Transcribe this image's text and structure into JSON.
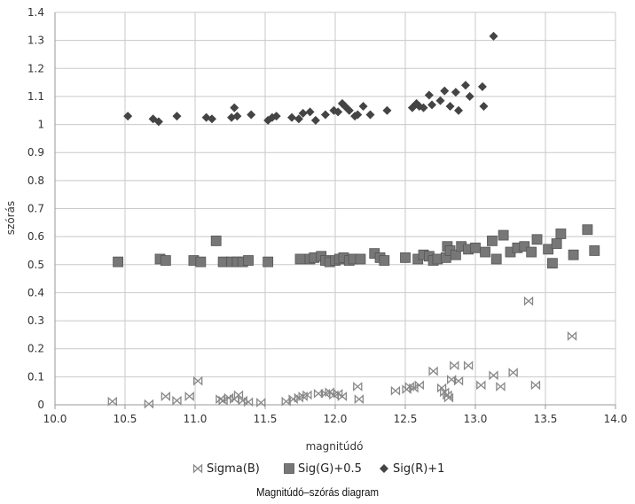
{
  "caption": "Magnitúdó–szórás diagram",
  "chart_data": {
    "type": "scatter",
    "title": "",
    "xlabel": "magnitúdó",
    "ylabel": "szórás",
    "xlim": [
      10.0,
      14.0
    ],
    "ylim": [
      0,
      1.4
    ],
    "x_ticks": [
      10.0,
      10.5,
      11.0,
      11.5,
      12.0,
      12.5,
      13.0,
      13.5,
      14.0
    ],
    "x_tick_labels": [
      "10.0",
      "10.5",
      "11.0",
      "11.5",
      "12.0",
      "12.5",
      "13.0",
      "13.5",
      "14.0"
    ],
    "y_ticks": [
      0,
      0.1,
      0.2,
      0.3,
      0.4,
      0.5,
      0.6,
      0.7,
      0.8,
      0.9,
      1,
      1.1,
      1.2,
      1.3,
      1.4
    ],
    "y_tick_labels": [
      "0",
      "0.1",
      "0.2",
      "0.3",
      "0.4",
      "0.5",
      "0.6",
      "0.7",
      "0.8",
      "0.9",
      "1",
      "1.1",
      "1.2",
      "1.3",
      "1.4"
    ],
    "grid": true,
    "legend_position": "bottom",
    "series": [
      {
        "name": "Sigma(B)",
        "marker": "bowtie",
        "color": "#888888",
        "x": [
          10.41,
          10.67,
          10.79,
          10.87,
          10.96,
          11.02,
          11.18,
          11.2,
          11.24,
          11.28,
          11.31,
          11.34,
          11.38,
          11.47,
          11.65,
          11.7,
          11.74,
          11.77,
          11.8,
          11.88,
          11.93,
          11.96,
          11.99,
          12.02,
          12.05,
          12.16,
          12.17,
          12.43,
          12.51,
          12.53,
          12.56,
          12.6,
          12.7,
          12.76,
          12.78,
          12.8,
          12.81,
          12.83,
          12.85,
          12.88,
          12.95,
          13.04,
          13.13,
          13.18,
          13.27,
          13.38,
          13.43,
          13.69
        ],
        "y": [
          0.012,
          0.003,
          0.03,
          0.015,
          0.03,
          0.085,
          0.02,
          0.015,
          0.025,
          0.02,
          0.035,
          0.015,
          0.01,
          0.008,
          0.012,
          0.02,
          0.025,
          0.03,
          0.035,
          0.04,
          0.04,
          0.045,
          0.035,
          0.04,
          0.03,
          0.065,
          0.02,
          0.05,
          0.055,
          0.065,
          0.06,
          0.07,
          0.12,
          0.06,
          0.045,
          0.035,
          0.025,
          0.09,
          0.14,
          0.085,
          0.14,
          0.07,
          0.105,
          0.065,
          0.115,
          0.37,
          0.07,
          0.245
        ]
      },
      {
        "name": "Sig(G)+0.5",
        "marker": "square",
        "color": "#777777",
        "x": [
          10.45,
          10.75,
          10.79,
          10.99,
          11.04,
          11.15,
          11.2,
          11.26,
          11.3,
          11.34,
          11.38,
          11.52,
          11.75,
          11.82,
          11.85,
          11.9,
          11.93,
          11.96,
          12.0,
          12.03,
          12.06,
          12.1,
          12.13,
          12.18,
          12.28,
          12.32,
          12.35,
          12.5,
          12.59,
          12.63,
          12.67,
          12.7,
          12.73,
          12.79,
          12.8,
          12.82,
          12.86,
          12.9,
          12.95,
          13.0,
          13.07,
          13.12,
          13.15,
          13.2,
          13.25,
          13.3,
          13.35,
          13.4,
          13.44,
          13.52,
          13.55,
          13.58,
          13.61,
          13.7,
          13.8,
          13.85
        ],
        "y": [
          0.51,
          0.52,
          0.515,
          0.515,
          0.51,
          0.585,
          0.51,
          0.51,
          0.51,
          0.51,
          0.515,
          0.51,
          0.52,
          0.52,
          0.525,
          0.53,
          0.515,
          0.51,
          0.515,
          0.52,
          0.525,
          0.515,
          0.52,
          0.52,
          0.54,
          0.525,
          0.515,
          0.525,
          0.52,
          0.535,
          0.53,
          0.515,
          0.52,
          0.525,
          0.565,
          0.55,
          0.535,
          0.565,
          0.555,
          0.56,
          0.545,
          0.585,
          0.52,
          0.605,
          0.545,
          0.56,
          0.565,
          0.545,
          0.59,
          0.555,
          0.505,
          0.575,
          0.61,
          0.535,
          0.625,
          0.55
        ]
      },
      {
        "name": "Sig(R)+1",
        "marker": "diamond",
        "color": "#444444",
        "x": [
          10.52,
          10.7,
          10.74,
          10.87,
          11.08,
          11.12,
          11.26,
          11.28,
          11.3,
          11.4,
          11.52,
          11.55,
          11.58,
          11.69,
          11.74,
          11.77,
          11.82,
          11.86,
          11.93,
          11.99,
          12.02,
          12.05,
          12.07,
          12.1,
          12.14,
          12.16,
          12.2,
          12.25,
          12.37,
          12.55,
          12.58,
          12.6,
          12.63,
          12.67,
          12.69,
          12.75,
          12.78,
          12.82,
          12.86,
          12.88,
          12.93,
          12.96,
          13.05,
          13.06,
          13.13
        ],
        "y": [
          1.03,
          1.02,
          1.01,
          1.03,
          1.025,
          1.02,
          1.025,
          1.06,
          1.03,
          1.035,
          1.015,
          1.025,
          1.03,
          1.025,
          1.02,
          1.04,
          1.045,
          1.015,
          1.035,
          1.05,
          1.045,
          1.075,
          1.065,
          1.05,
          1.03,
          1.035,
          1.065,
          1.035,
          1.05,
          1.06,
          1.075,
          1.065,
          1.06,
          1.105,
          1.07,
          1.085,
          1.12,
          1.065,
          1.115,
          1.05,
          1.14,
          1.1,
          1.135,
          1.065,
          1.315
        ]
      }
    ]
  }
}
